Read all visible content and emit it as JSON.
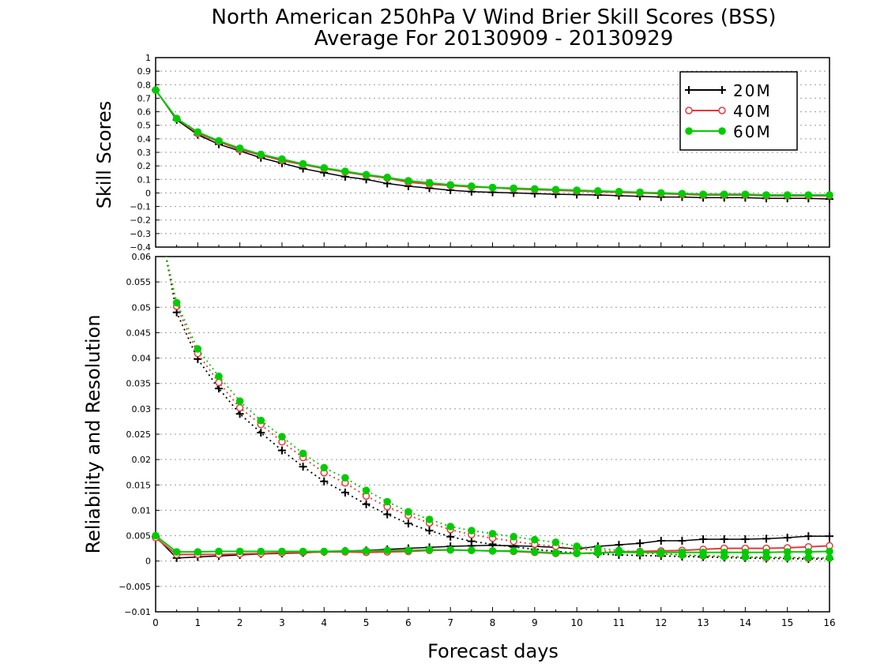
{
  "title": {
    "line1": "North American 250hPa V Wind Brier Skill Scores (BSS)",
    "line2": "Average For 20130909 - 20130929"
  },
  "colors": {
    "20M": "#000000",
    "40M": "#e8383b",
    "60M": "#00cc00",
    "grid": "#999999"
  },
  "chart_data": [
    {
      "type": "line",
      "ylabel": "Skill Scores",
      "xlabel": "",
      "ylim": [
        -0.4,
        1.0
      ],
      "xlim": [
        0,
        16
      ],
      "grid": true,
      "legend_placement": "top-right",
      "yticks": [
        "1",
        "0.9",
        "0.8",
        "0.7",
        "0.6",
        "0.5",
        "0.4",
        "0.3",
        "0.2",
        "0.1",
        "0",
        "−0.1",
        "−0.2",
        "−0.3",
        "−0.4"
      ],
      "x": [
        0,
        0.5,
        1,
        1.5,
        2,
        2.5,
        3,
        3.5,
        4,
        4.5,
        5,
        5.5,
        6,
        6.5,
        7,
        7.5,
        8,
        8.5,
        9,
        9.5,
        10,
        10.5,
        11,
        11.5,
        12,
        12.5,
        13,
        13.5,
        14,
        14.5,
        15,
        15.5,
        16
      ],
      "series": [
        {
          "name": "20M",
          "marker": "plus",
          "line": "solid",
          "values": [
            0.76,
            0.54,
            0.43,
            0.36,
            0.31,
            0.26,
            0.22,
            0.18,
            0.15,
            0.12,
            0.1,
            0.07,
            0.05,
            0.035,
            0.02,
            0.01,
            0.005,
            0.0,
            -0.005,
            -0.01,
            -0.012,
            -0.015,
            -0.02,
            -0.025,
            -0.03,
            -0.03,
            -0.035,
            -0.035,
            -0.035,
            -0.04,
            -0.04,
            -0.04,
            -0.045
          ]
        },
        {
          "name": "40M",
          "marker": "open-circle",
          "line": "solid",
          "values": [
            0.76,
            0.55,
            0.44,
            0.38,
            0.32,
            0.28,
            0.24,
            0.21,
            0.18,
            0.155,
            0.13,
            0.11,
            0.08,
            0.065,
            0.055,
            0.045,
            0.04,
            0.03,
            0.025,
            0.02,
            0.015,
            0.01,
            0.005,
            0.0,
            -0.005,
            -0.01,
            -0.015,
            -0.015,
            -0.015,
            -0.02,
            -0.02,
            -0.02,
            -0.02
          ]
        },
        {
          "name": "60M",
          "marker": "filled-circle",
          "line": "solid",
          "values": [
            0.76,
            0.55,
            0.45,
            0.385,
            0.33,
            0.285,
            0.25,
            0.215,
            0.185,
            0.16,
            0.135,
            0.115,
            0.09,
            0.075,
            0.06,
            0.05,
            0.04,
            0.035,
            0.03,
            0.025,
            0.02,
            0.015,
            0.01,
            0.005,
            0.0,
            -0.005,
            -0.01,
            -0.01,
            -0.01,
            -0.015,
            -0.015,
            -0.015,
            -0.015
          ]
        }
      ]
    },
    {
      "type": "line",
      "ylabel": "Reliability and Resolution",
      "xlabel": "Forecast days",
      "ylim": [
        -0.01,
        0.06
      ],
      "xlim": [
        0,
        16
      ],
      "grid": true,
      "yticks": [
        "0.06",
        "0.055",
        "0.05",
        "0.045",
        "0.04",
        "0.035",
        "0.03",
        "0.025",
        "0.02",
        "0.015",
        "0.01",
        "0.005",
        "0",
        "−0.005",
        "−0.01"
      ],
      "xticks": [
        "0",
        "1",
        "2",
        "3",
        "4",
        "5",
        "6",
        "7",
        "8",
        "9",
        "10",
        "11",
        "12",
        "13",
        "14",
        "15",
        "16"
      ],
      "resolution_x": [
        0.5,
        1,
        1.5,
        2,
        2.5,
        3,
        3.5,
        4,
        4.5,
        5,
        5.5,
        6,
        6.5,
        7,
        7.5,
        8,
        8.5,
        9,
        9.5,
        10,
        10.5,
        11,
        11.5,
        12,
        12.5,
        13,
        13.5,
        14,
        14.5,
        15,
        15.5,
        16
      ],
      "reliability_x": [
        0,
        0.5,
        1,
        1.5,
        2,
        2.5,
        3,
        3.5,
        4,
        4.5,
        5,
        5.5,
        6,
        6.5,
        7,
        7.5,
        8,
        8.5,
        9,
        9.5,
        10,
        10.5,
        11,
        11.5,
        12,
        12.5,
        13,
        13.5,
        14,
        14.5,
        15,
        15.5,
        16
      ],
      "series": [
        {
          "name": "20M",
          "marker": "plus",
          "resolution": [
            0.049,
            0.0398,
            0.034,
            0.029,
            0.0253,
            0.0218,
            0.0186,
            0.0157,
            0.0135,
            0.0112,
            0.0092,
            0.0074,
            0.006,
            0.0048,
            0.0039,
            0.0033,
            0.0028,
            0.0023,
            0.0019,
            0.0016,
            0.0014,
            0.0012,
            0.0011,
            0.001,
            0.0009,
            0.0008,
            0.0007,
            0.0006,
            0.0005,
            0.0005,
            0.0004,
            0.0004
          ],
          "reliability": [
            0.0048,
            0.0006,
            0.0008,
            0.001,
            0.0012,
            0.0014,
            0.0015,
            0.0016,
            0.0018,
            0.002,
            0.0021,
            0.0023,
            0.0025,
            0.0027,
            0.0029,
            0.003,
            0.0031,
            0.003,
            0.0029,
            0.0027,
            0.0024,
            0.0029,
            0.0032,
            0.0035,
            0.004,
            0.004,
            0.0043,
            0.0043,
            0.0043,
            0.0044,
            0.0046,
            0.0049,
            0.0049
          ]
        },
        {
          "name": "40M",
          "marker": "open-circle",
          "resolution": [
            0.0502,
            0.0409,
            0.0352,
            0.0302,
            0.0269,
            0.0235,
            0.0204,
            0.0174,
            0.0154,
            0.0128,
            0.0107,
            0.009,
            0.0075,
            0.0062,
            0.0052,
            0.0045,
            0.0039,
            0.0033,
            0.0029,
            0.0024,
            0.0021,
            0.0018,
            0.0016,
            0.0014,
            0.0012,
            0.001,
            0.0009,
            0.0008,
            0.0007,
            0.0007,
            0.0006,
            0.0006
          ],
          "reliability": [
            0.0046,
            0.0013,
            0.0013,
            0.0013,
            0.0014,
            0.0015,
            0.0016,
            0.0017,
            0.0018,
            0.0018,
            0.0017,
            0.0018,
            0.0019,
            0.0021,
            0.0022,
            0.0021,
            0.002,
            0.0019,
            0.0017,
            0.0015,
            0.0015,
            0.0016,
            0.0018,
            0.0019,
            0.002,
            0.0021,
            0.0023,
            0.0025,
            0.0025,
            0.0025,
            0.0026,
            0.0028,
            0.003
          ]
        },
        {
          "name": "60M",
          "marker": "filled-circle",
          "resolution": [
            0.0509,
            0.0418,
            0.0364,
            0.0315,
            0.0277,
            0.0245,
            0.0212,
            0.0184,
            0.0164,
            0.0139,
            0.0117,
            0.0097,
            0.0082,
            0.0068,
            0.006,
            0.0054,
            0.0048,
            0.0042,
            0.0037,
            0.0029,
            0.0025,
            0.0021,
            0.0018,
            0.0015,
            0.0012,
            0.0011,
            0.0009,
            0.0008,
            0.0008,
            0.0007,
            0.0007,
            0.0006
          ],
          "reliability": [
            0.005,
            0.0018,
            0.0018,
            0.0019,
            0.0019,
            0.0019,
            0.0019,
            0.0019,
            0.0019,
            0.002,
            0.002,
            0.0021,
            0.0021,
            0.0022,
            0.0022,
            0.0021,
            0.002,
            0.002,
            0.0018,
            0.0016,
            0.0015,
            0.0016,
            0.0017,
            0.0017,
            0.0017,
            0.0017,
            0.0017,
            0.0017,
            0.0017,
            0.0017,
            0.0018,
            0.0018,
            0.0019
          ]
        }
      ]
    }
  ]
}
